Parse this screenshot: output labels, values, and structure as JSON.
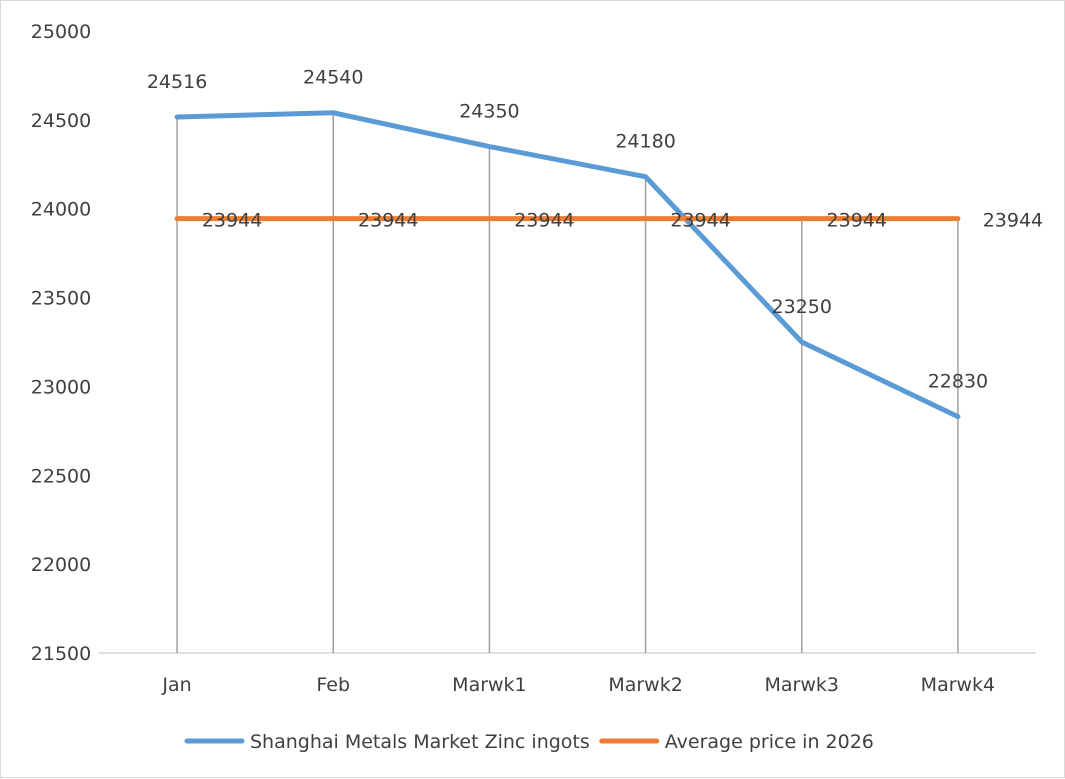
{
  "chart_data": {
    "type": "line",
    "title": "",
    "xlabel": "",
    "ylabel": "",
    "categories": [
      "Jan",
      "Feb",
      "Marwk1",
      "Marwk2",
      "Marwk3",
      "Marwk4"
    ],
    "ylim": [
      21500,
      25000
    ],
    "yticks": [
      21500,
      22000,
      22500,
      23000,
      23500,
      24000,
      24500,
      25000
    ],
    "grid": false,
    "drop_lines": true,
    "legend_position": "bottom",
    "data_labels": true,
    "series": [
      {
        "name": "Shanghai Metals Market Zinc ingots",
        "color": "#5b9bd5",
        "values": [
          24516,
          24540,
          24350,
          24180,
          23250,
          22830
        ]
      },
      {
        "name": "Average price in 2026",
        "color": "#ed7d31",
        "values": [
          23944,
          23944,
          23944,
          23944,
          23944,
          23944
        ]
      }
    ]
  }
}
